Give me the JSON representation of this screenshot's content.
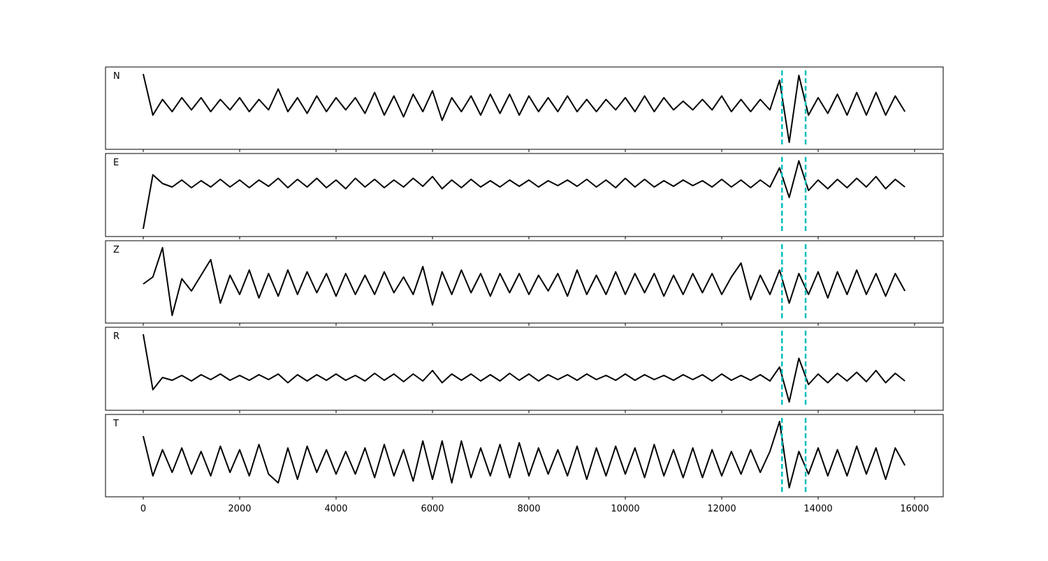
{
  "chart_data": {
    "type": "line",
    "xlim": [
      -783,
      16594
    ],
    "xticks": [
      0,
      2000,
      4000,
      6000,
      8000,
      10000,
      12000,
      14000,
      16000
    ],
    "markers": [
      13250,
      13740
    ],
    "marker_color": "#00bfbf",
    "x": [
      0,
      200,
      400,
      600,
      800,
      1000,
      1200,
      1400,
      1600,
      1800,
      2000,
      2200,
      2400,
      2600,
      2800,
      3000,
      3200,
      3400,
      3600,
      3800,
      4000,
      4200,
      4400,
      4600,
      4800,
      5000,
      5200,
      5400,
      5600,
      5800,
      6000,
      6200,
      6400,
      6600,
      6800,
      7000,
      7200,
      7400,
      7600,
      7800,
      8000,
      8200,
      8400,
      8600,
      8800,
      9000,
      9200,
      9400,
      9600,
      9800,
      10000,
      10200,
      10400,
      10600,
      10800,
      11000,
      11200,
      11400,
      11600,
      11800,
      12000,
      12200,
      12400,
      12600,
      12800,
      13000,
      13200,
      13400,
      13600,
      13800,
      14000,
      14200,
      14400,
      14600,
      14800,
      15000,
      15200,
      15400,
      15600,
      15800
    ],
    "series": [
      {
        "name": "N",
        "color": "#000000",
        "ylim": [
          -1.28,
          1.08
        ],
        "values": [
          0.88,
          -0.3,
          0.15,
          -0.2,
          0.2,
          -0.15,
          0.2,
          -0.2,
          0.15,
          -0.15,
          0.2,
          -0.2,
          0.15,
          -0.15,
          0.45,
          -0.2,
          0.2,
          -0.25,
          0.25,
          -0.2,
          0.2,
          -0.15,
          0.2,
          -0.25,
          0.35,
          -0.3,
          0.25,
          -0.35,
          0.3,
          -0.2,
          0.4,
          -0.45,
          0.2,
          -0.2,
          0.25,
          -0.3,
          0.3,
          -0.25,
          0.3,
          -0.3,
          0.25,
          -0.2,
          0.2,
          -0.2,
          0.25,
          -0.2,
          0.15,
          -0.2,
          0.15,
          -0.15,
          0.2,
          -0.2,
          0.25,
          -0.2,
          0.2,
          -0.15,
          0.1,
          -0.15,
          0.15,
          -0.15,
          0.25,
          -0.2,
          0.15,
          -0.2,
          0.15,
          -0.15,
          0.7,
          -1.08,
          0.84,
          -0.3,
          0.2,
          -0.25,
          0.3,
          -0.3,
          0.35,
          -0.3,
          0.35,
          -0.3,
          0.25,
          -0.2
        ]
      },
      {
        "name": "E",
        "color": "#000000",
        "ylim": [
          -1.52,
          0.86
        ],
        "values": [
          -1.3,
          0.25,
          0.0,
          -0.1,
          0.1,
          -0.12,
          0.08,
          -0.1,
          0.12,
          -0.1,
          0.1,
          -0.12,
          0.1,
          -0.08,
          0.15,
          -0.12,
          0.12,
          -0.1,
          0.15,
          -0.12,
          0.1,
          -0.15,
          0.15,
          -0.1,
          0.12,
          -0.12,
          0.1,
          -0.1,
          0.15,
          -0.08,
          0.2,
          -0.15,
          0.1,
          -0.12,
          0.12,
          -0.1,
          0.08,
          -0.1,
          0.1,
          -0.08,
          0.1,
          -0.1,
          0.08,
          -0.06,
          0.1,
          -0.08,
          0.12,
          -0.1,
          0.1,
          -0.12,
          0.15,
          -0.1,
          0.12,
          -0.1,
          0.08,
          -0.08,
          0.1,
          -0.06,
          0.08,
          -0.1,
          0.12,
          -0.1,
          0.1,
          -0.12,
          0.1,
          -0.1,
          0.45,
          -0.4,
          0.65,
          -0.2,
          0.1,
          -0.15,
          0.12,
          -0.12,
          0.15,
          -0.1,
          0.2,
          -0.15,
          0.12,
          -0.1
        ]
      },
      {
        "name": "Z",
        "color": "#000000",
        "ylim": [
          -1.12,
          1.24
        ],
        "values": [
          0.0,
          0.2,
          1.04,
          -0.9,
          0.15,
          -0.2,
          0.25,
          0.7,
          -0.55,
          0.25,
          -0.3,
          0.4,
          -0.4,
          0.3,
          -0.35,
          0.4,
          -0.3,
          0.35,
          -0.25,
          0.3,
          -0.35,
          0.3,
          -0.3,
          0.25,
          -0.3,
          0.35,
          -0.25,
          0.2,
          -0.3,
          0.5,
          -0.6,
          0.35,
          -0.3,
          0.4,
          -0.25,
          0.3,
          -0.35,
          0.3,
          -0.25,
          0.3,
          -0.3,
          0.25,
          -0.2,
          0.3,
          -0.35,
          0.4,
          -0.3,
          0.25,
          -0.3,
          0.35,
          -0.3,
          0.3,
          -0.25,
          0.3,
          -0.35,
          0.25,
          -0.3,
          0.3,
          -0.25,
          0.3,
          -0.3,
          0.2,
          0.6,
          -0.45,
          0.25,
          -0.3,
          0.4,
          -0.55,
          0.3,
          -0.3,
          0.35,
          -0.4,
          0.35,
          -0.3,
          0.4,
          -0.3,
          0.3,
          -0.35,
          0.3,
          -0.2
        ]
      },
      {
        "name": "R",
        "color": "#000000",
        "ylim": [
          -0.94,
          1.44
        ],
        "values": [
          1.24,
          -0.35,
          0.0,
          -0.08,
          0.06,
          -0.1,
          0.08,
          -0.06,
          0.1,
          -0.08,
          0.06,
          -0.08,
          0.08,
          -0.06,
          0.1,
          -0.15,
          0.08,
          -0.1,
          0.08,
          -0.08,
          0.1,
          -0.08,
          0.06,
          -0.1,
          0.12,
          -0.08,
          0.1,
          -0.12,
          0.1,
          -0.1,
          0.2,
          -0.15,
          0.1,
          -0.08,
          0.1,
          -0.1,
          0.08,
          -0.1,
          0.12,
          -0.08,
          0.1,
          -0.1,
          0.08,
          -0.06,
          0.08,
          -0.08,
          0.1,
          -0.06,
          0.06,
          -0.08,
          0.1,
          -0.08,
          0.08,
          -0.06,
          0.06,
          -0.08,
          0.08,
          -0.06,
          0.08,
          -0.1,
          0.1,
          -0.08,
          0.06,
          -0.08,
          0.08,
          -0.1,
          0.3,
          -0.7,
          0.55,
          -0.2,
          0.1,
          -0.15,
          0.12,
          -0.1,
          0.15,
          -0.12,
          0.2,
          -0.15,
          0.12,
          -0.1
        ]
      },
      {
        "name": "T",
        "color": "#000000",
        "ylim": [
          -1.0,
          1.36
        ],
        "values": [
          0.74,
          -0.4,
          0.35,
          -0.3,
          0.4,
          -0.35,
          0.3,
          -0.4,
          0.45,
          -0.3,
          0.35,
          -0.4,
          0.5,
          -0.35,
          -0.6,
          0.4,
          -0.5,
          0.45,
          -0.3,
          0.35,
          -0.35,
          0.3,
          -0.35,
          0.4,
          -0.45,
          0.5,
          -0.4,
          0.35,
          -0.55,
          0.6,
          -0.5,
          0.6,
          -0.6,
          0.6,
          -0.45,
          0.4,
          -0.4,
          0.5,
          -0.45,
          0.55,
          -0.4,
          0.4,
          -0.35,
          0.35,
          -0.4,
          0.45,
          -0.5,
          0.4,
          -0.4,
          0.45,
          -0.35,
          0.4,
          -0.45,
          0.5,
          -0.4,
          0.35,
          -0.45,
          0.4,
          -0.45,
          0.35,
          -0.4,
          0.3,
          -0.35,
          0.35,
          -0.3,
          0.3,
          1.16,
          -0.74,
          0.3,
          -0.35,
          0.4,
          -0.4,
          0.35,
          -0.4,
          0.45,
          -0.35,
          0.4,
          -0.5,
          0.4,
          -0.1
        ]
      }
    ]
  }
}
